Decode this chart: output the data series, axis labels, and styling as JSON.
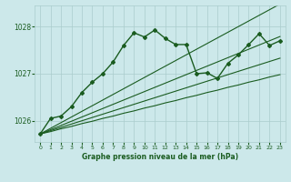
{
  "title": "Graphe pression niveau de la mer (hPa)",
  "bg_color": "#cce8ea",
  "grid_color": "#aacccc",
  "line_color": "#1a5c20",
  "marker_color": "#1a5c20",
  "x_ticks": [
    0,
    1,
    2,
    3,
    4,
    5,
    6,
    7,
    8,
    9,
    10,
    11,
    12,
    13,
    14,
    15,
    16,
    17,
    18,
    19,
    20,
    21,
    22,
    23
  ],
  "y_ticks": [
    1026,
    1027,
    1028
  ],
  "ylim": [
    1025.55,
    1028.45
  ],
  "xlim": [
    -0.5,
    23.5
  ],
  "main_line": [
    1025.72,
    1026.05,
    1026.1,
    1026.3,
    1026.6,
    1026.82,
    1027.0,
    1027.25,
    1027.6,
    1027.87,
    1027.78,
    1027.93,
    1027.75,
    1027.62,
    1027.62,
    1027.0,
    1027.02,
    1026.9,
    1027.22,
    1027.4,
    1027.62,
    1027.85,
    1027.6,
    1027.7
  ],
  "linear_lines": [
    [
      1025.72,
      1025.77,
      1025.83,
      1025.88,
      1025.94,
      1025.99,
      1026.05,
      1026.1,
      1026.16,
      1026.21,
      1026.27,
      1026.32,
      1026.38,
      1026.43,
      1026.49,
      1026.54,
      1026.6,
      1026.65,
      1026.71,
      1026.76,
      1026.82,
      1026.87,
      1026.93,
      1026.98
    ],
    [
      1025.72,
      1025.79,
      1025.86,
      1025.93,
      1026.0,
      1026.07,
      1026.14,
      1026.21,
      1026.28,
      1026.35,
      1026.42,
      1026.49,
      1026.56,
      1026.63,
      1026.7,
      1026.77,
      1026.84,
      1026.91,
      1026.98,
      1027.05,
      1027.12,
      1027.19,
      1027.26,
      1027.33
    ],
    [
      1025.72,
      1025.81,
      1025.9,
      1025.99,
      1026.08,
      1026.17,
      1026.26,
      1026.35,
      1026.44,
      1026.53,
      1026.62,
      1026.71,
      1026.8,
      1026.89,
      1026.98,
      1027.07,
      1027.16,
      1027.25,
      1027.34,
      1027.43,
      1027.52,
      1027.61,
      1027.7,
      1027.79
    ],
    [
      1025.72,
      1025.84,
      1025.96,
      1026.08,
      1026.2,
      1026.32,
      1026.44,
      1026.56,
      1026.68,
      1026.8,
      1026.92,
      1027.04,
      1027.16,
      1027.28,
      1027.4,
      1027.52,
      1027.64,
      1027.76,
      1027.88,
      1028.0,
      1028.12,
      1028.24,
      1028.36,
      1028.48
    ]
  ]
}
